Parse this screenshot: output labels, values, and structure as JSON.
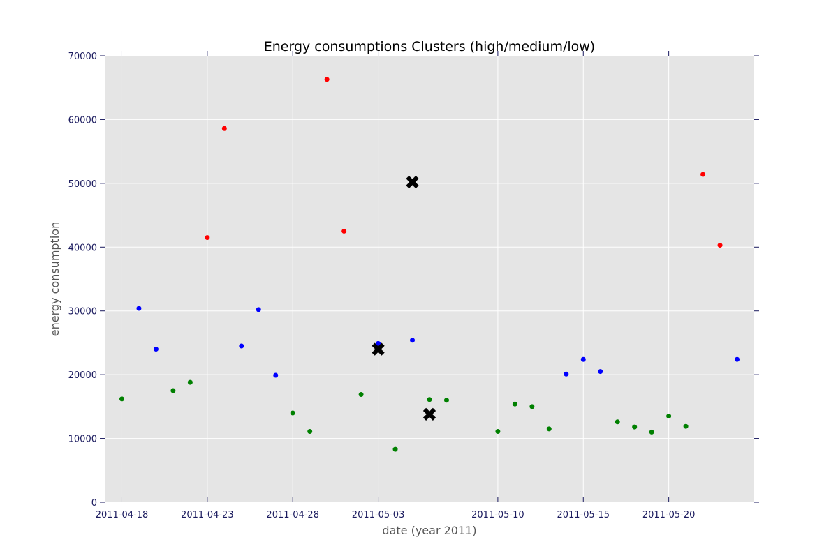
{
  "chart_data": {
    "type": "scatter",
    "title": "Energy consumptions Clusters (high/medium/low)",
    "xlabel": "date (year 2011)",
    "ylabel": "energy consumption",
    "xlim": [
      "2011-04-17",
      "2011-05-25"
    ],
    "ylim": [
      0,
      70000
    ],
    "x_ticks": [
      "2011-04-18",
      "2011-04-23",
      "2011-04-28",
      "2011-05-03",
      "2011-05-10",
      "2011-05-15",
      "2011-05-20"
    ],
    "y_ticks": [
      0,
      10000,
      20000,
      30000,
      40000,
      50000,
      60000,
      70000
    ],
    "grid": true,
    "background": "#e5e5e5",
    "tick_color": "#1a1a5e",
    "series": [
      {
        "color": "#0000ff",
        "points": [
          {
            "x": "2011-04-19",
            "y": 30400
          },
          {
            "x": "2011-04-20",
            "y": 24000
          },
          {
            "x": "2011-04-25",
            "y": 24500
          },
          {
            "x": "2011-04-26",
            "y": 30200
          },
          {
            "x": "2011-04-27",
            "y": 19900
          },
          {
            "x": "2011-05-03",
            "y": 24900
          },
          {
            "x": "2011-05-05",
            "y": 25400
          },
          {
            "x": "2011-05-14",
            "y": 20100
          },
          {
            "x": "2011-05-15",
            "y": 22400
          },
          {
            "x": "2011-05-16",
            "y": 20500
          },
          {
            "x": "2011-05-24",
            "y": 22400
          }
        ]
      },
      {
        "color": "#008000",
        "points": [
          {
            "x": "2011-04-18",
            "y": 16200
          },
          {
            "x": "2011-04-21",
            "y": 17500
          },
          {
            "x": "2011-04-22",
            "y": 18800
          },
          {
            "x": "2011-04-28",
            "y": 14000
          },
          {
            "x": "2011-04-29",
            "y": 11100
          },
          {
            "x": "2011-05-02",
            "y": 16900
          },
          {
            "x": "2011-05-04",
            "y": 8300
          },
          {
            "x": "2011-05-06",
            "y": 16100
          },
          {
            "x": "2011-05-07",
            "y": 16000
          },
          {
            "x": "2011-05-10",
            "y": 11100
          },
          {
            "x": "2011-05-11",
            "y": 15400
          },
          {
            "x": "2011-05-12",
            "y": 15000
          },
          {
            "x": "2011-05-13",
            "y": 11500
          },
          {
            "x": "2011-05-17",
            "y": 12600
          },
          {
            "x": "2011-05-18",
            "y": 11800
          },
          {
            "x": "2011-05-19",
            "y": 11000
          },
          {
            "x": "2011-05-20",
            "y": 13500
          },
          {
            "x": "2011-05-21",
            "y": 11900
          }
        ]
      },
      {
        "color": "#ff0000",
        "points": [
          {
            "x": "2011-04-23",
            "y": 41500
          },
          {
            "x": "2011-04-24",
            "y": 58600
          },
          {
            "x": "2011-04-30",
            "y": 66300
          },
          {
            "x": "2011-05-01",
            "y": 42500
          },
          {
            "x": "2011-05-22",
            "y": 51400
          },
          {
            "x": "2011-05-23",
            "y": 40300
          }
        ]
      }
    ],
    "centroids": {
      "color": "#000000",
      "marker": "x",
      "points": [
        {
          "x": "2011-05-05",
          "y": 50200
        },
        {
          "x": "2011-05-03",
          "y": 24000
        },
        {
          "x": "2011-05-06",
          "y": 13800
        }
      ]
    }
  }
}
